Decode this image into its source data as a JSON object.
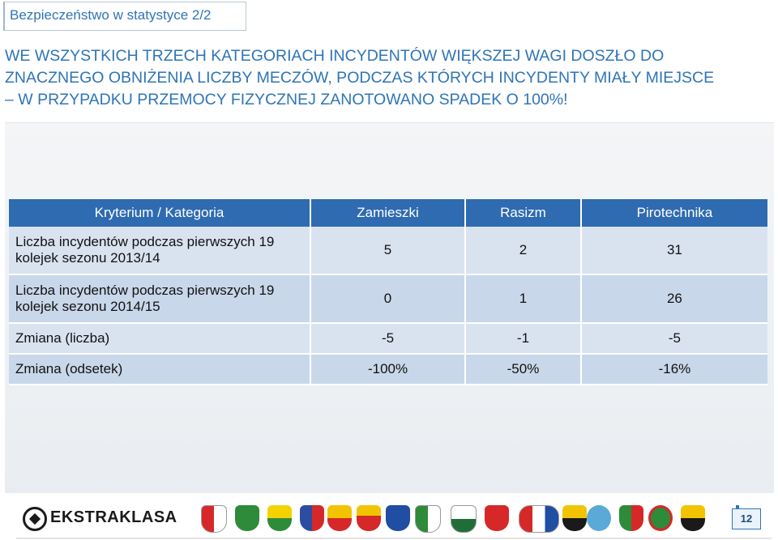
{
  "slide": {
    "title": "Bezpieczeństwo w statystyce 2/2"
  },
  "headline": {
    "line1": "WE WSZYSTKICH TRZECH KATEGORIACH INCYDENTÓW WIĘKSZEJ WAGI DOSZŁO DO",
    "line2": "ZNACZNEGO OBNIŻENIA LICZBY MECZÓW, PODCZAS KTÓRYCH INCYDENTY MIAŁY MIEJSCE",
    "line3": "– W PRZYPADKU PRZEMOCY FIZYCZNEJ ZANOTOWANO SPADEK O 100%!"
  },
  "table": {
    "headers": [
      "Kryterium / Kategoria",
      "Zamieszki",
      "Rasizm",
      "Pirotechnika"
    ],
    "rows": [
      {
        "label": "Liczba incydentów podczas pierwszych 19 kolejek sezonu 2013/14",
        "values": [
          "5",
          "2",
          "31"
        ]
      },
      {
        "label": "Liczba incydentów podczas pierwszych 19 kolejek sezonu 2014/15",
        "values": [
          "0",
          "1",
          "26"
        ]
      },
      {
        "label": "Zmiana (liczba)",
        "values": [
          "-5",
          "-1",
          "-5"
        ]
      },
      {
        "label": "Zmiana (odsetek)",
        "values": [
          "-100%",
          "-50%",
          "-16%"
        ]
      }
    ]
  },
  "footer": {
    "brand": "EKSTRAKLASA",
    "page_number": "12"
  },
  "colors": {
    "header_bg": "#2f6bb0",
    "row_bg": "#d9e3f0",
    "row_alt_bg": "#c9d7ea",
    "title_color": "#2e75b6"
  }
}
